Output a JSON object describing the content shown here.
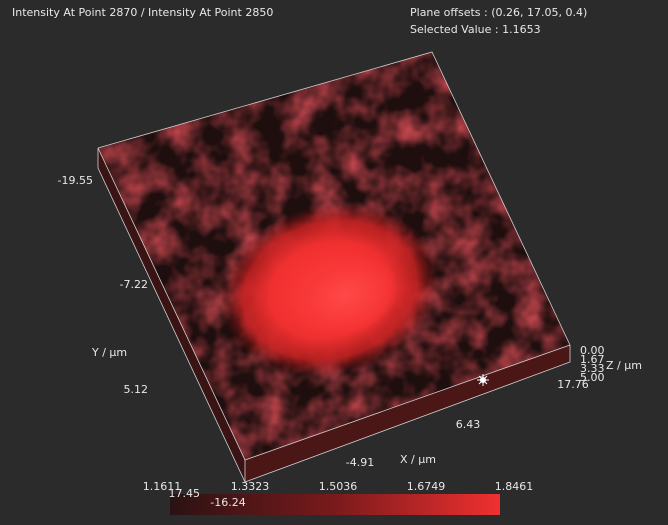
{
  "header": {
    "title": "Intensity At Point 2870 / Intensity At Point 2850",
    "plane_offsets": "Plane offsets : (0.26, 17.05, 0.4)",
    "selected_value": "Selected Value : 1.1653"
  },
  "axes": {
    "y": {
      "label": "Y / µm",
      "ticks": [
        "-19.55",
        "-7.22",
        "5.12",
        "17.45"
      ]
    },
    "x": {
      "label": "X / µm",
      "ticks": [
        "-16.24",
        "-4.91",
        "6.43",
        "17.76"
      ]
    },
    "z": {
      "label": "Z / µm",
      "ticks": [
        "0.00",
        "1.67",
        "3.33",
        "5.00"
      ]
    }
  },
  "colorbar": {
    "ticks": [
      "1.1611",
      "1.3323",
      "1.5036",
      "1.6749",
      "1.8461"
    ]
  }
}
